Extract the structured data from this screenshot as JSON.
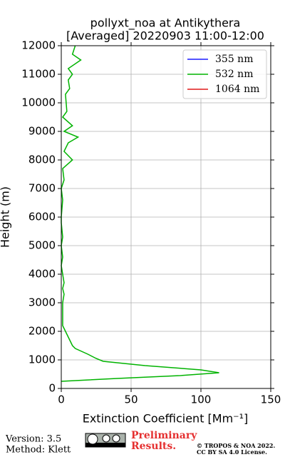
{
  "chart_data": {
    "type": "line",
    "title": "pollyxt_noa at Antikythera",
    "subtitle": "[Averaged] 20220903 11:00-12:00",
    "x_label": "Extinction Coefficient [Mm⁻¹]",
    "y_label": "Height (m)",
    "y": [
      250,
      350,
      450,
      550,
      650,
      800,
      950,
      1050,
      1200,
      1400,
      1500,
      1800,
      2000,
      2200,
      2500,
      3000,
      3300,
      3500,
      3700,
      4000,
      4300,
      4600,
      5000,
      5300,
      5800,
      6000,
      6600,
      7000,
      7300,
      7700,
      8000,
      8300,
      8600,
      8800,
      9000,
      9200,
      9500,
      9700,
      10300,
      10500,
      10800,
      11000,
      11200,
      11500,
      11700,
      12000
    ],
    "series": [
      {
        "name": "355 nm",
        "color": "#1a1aff",
        "values": [
          null,
          null,
          null,
          null,
          null,
          null,
          null,
          null,
          null,
          null,
          null,
          null,
          null,
          null,
          null,
          null,
          null,
          null,
          null,
          null,
          null,
          null,
          null,
          null,
          null,
          null,
          null,
          null,
          null,
          null,
          null,
          null,
          null,
          null,
          null,
          null,
          null,
          null,
          null,
          null,
          null,
          null,
          null,
          null,
          null,
          null
        ]
      },
      {
        "name": "532 nm",
        "color": "#00b300",
        "values": [
          0,
          40,
          85,
          113,
          100,
          60,
          30,
          25,
          19,
          10,
          8,
          5,
          3,
          1,
          1,
          1,
          2,
          1,
          2,
          1,
          0,
          1,
          0,
          1,
          0,
          0,
          1,
          0,
          2,
          1,
          8,
          2,
          5,
          12,
          2,
          8,
          1,
          4,
          3,
          6,
          5,
          8,
          5,
          14,
          8,
          10
        ]
      },
      {
        "name": "1064 nm",
        "color": "#e01818",
        "values": [
          null,
          null,
          null,
          null,
          null,
          null,
          null,
          null,
          null,
          null,
          null,
          null,
          null,
          null,
          null,
          null,
          null,
          null,
          null,
          null,
          null,
          null,
          null,
          null,
          null,
          null,
          null,
          null,
          null,
          null,
          null,
          null,
          null,
          null,
          null,
          null,
          null,
          null,
          null,
          null,
          null,
          null,
          null,
          null,
          null,
          null
        ]
      }
    ],
    "xlim": [
      0,
      150
    ],
    "xticks": [
      0,
      50,
      100,
      150
    ],
    "ylim": [
      0,
      12000
    ],
    "yticks": [
      0,
      1000,
      2000,
      3000,
      4000,
      5000,
      6000,
      7000,
      8000,
      9000,
      10000,
      11000,
      12000
    ],
    "grid": true,
    "legend": "upper right"
  },
  "footer": {
    "version": "Version: 3.5",
    "method": "Method: Klett",
    "status": [
      "Preliminary",
      "Results."
    ],
    "copyright": "© TROPOS & NOA 2022.",
    "license": "CC BY SA 4.0 License."
  }
}
